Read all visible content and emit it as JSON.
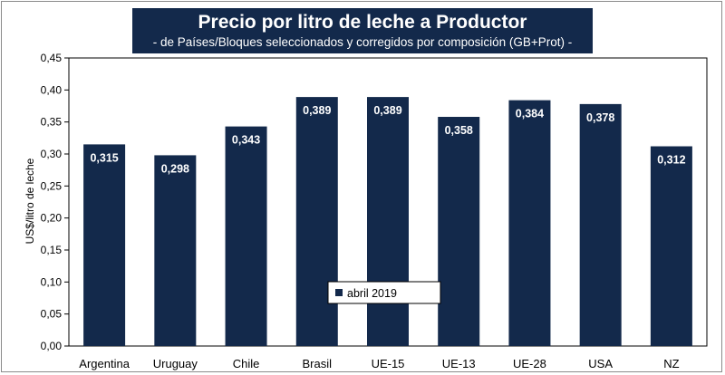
{
  "chart_data": {
    "type": "bar",
    "title": "Precio por litro de leche a Productor",
    "subtitle": "-  de Países/Bloques seleccionados y corregidos por composición (GB+Prot) -",
    "xlabel": "",
    "ylabel": "US$/litro de leche",
    "categories": [
      "Argentina",
      "Uruguay",
      "Chile",
      "Brasil",
      "UE-15",
      "UE-13",
      "UE-28",
      "USA",
      "NZ"
    ],
    "series": [
      {
        "name": "abril 2019",
        "values": [
          0.315,
          0.298,
          0.343,
          0.389,
          0.389,
          0.358,
          0.384,
          0.378,
          0.312
        ],
        "labels": [
          "0,315",
          "0,298",
          "0,343",
          "0,389",
          "0,389",
          "0,358",
          "0,384",
          "0,378",
          "0,312"
        ]
      }
    ],
    "ylim": [
      0,
      0.45
    ],
    "yticks": [
      0,
      0.05,
      0.1,
      0.15,
      0.2,
      0.25,
      0.3,
      0.35,
      0.4,
      0.45
    ],
    "ytick_labels": [
      "0,00",
      "0,05",
      "0,10",
      "0,15",
      "0,20",
      "0,25",
      "0,30",
      "0,35",
      "0,40",
      "0,45"
    ],
    "grid": false,
    "legend_position": "bottom-center",
    "bar_color": "#13294b"
  }
}
